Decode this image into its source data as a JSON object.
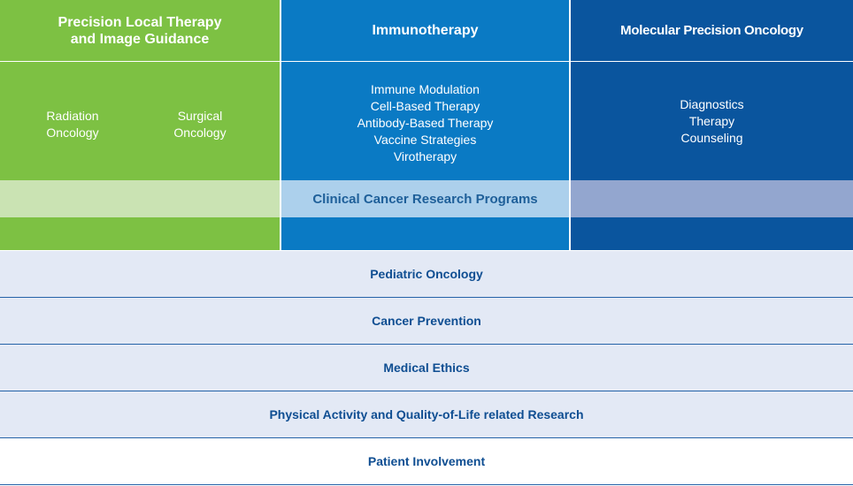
{
  "columns": {
    "local_therapy": {
      "title": "Precision Local Therapy\nand Image Guidance",
      "items": [
        "Radiation\nOncology",
        "Surgical\nOncology"
      ]
    },
    "immunotherapy": {
      "title": "Immunotherapy",
      "items": "Immune Modulation\nCell-Based Therapy\nAntibody-Based Therapy\nVaccine Strategies\nVirotherapy"
    },
    "molecular": {
      "title": "Molecular Precision Oncology",
      "items": "Diagnostics\nTherapy\nCounseling"
    }
  },
  "band": {
    "label": "Clinical Cancer Research Programs"
  },
  "rows": [
    "Pediatric Oncology",
    "Cancer Prevention",
    "Medical Ethics",
    "Physical Activity and Quality-of-Life related Research",
    "Patient Involvement"
  ],
  "colors": {
    "green": "#7dc143",
    "mid_blue": "#0a7ac4",
    "dark_blue": "#0a559e",
    "row_tint": "#e3e9f5",
    "row_text": "#0f4e92"
  }
}
